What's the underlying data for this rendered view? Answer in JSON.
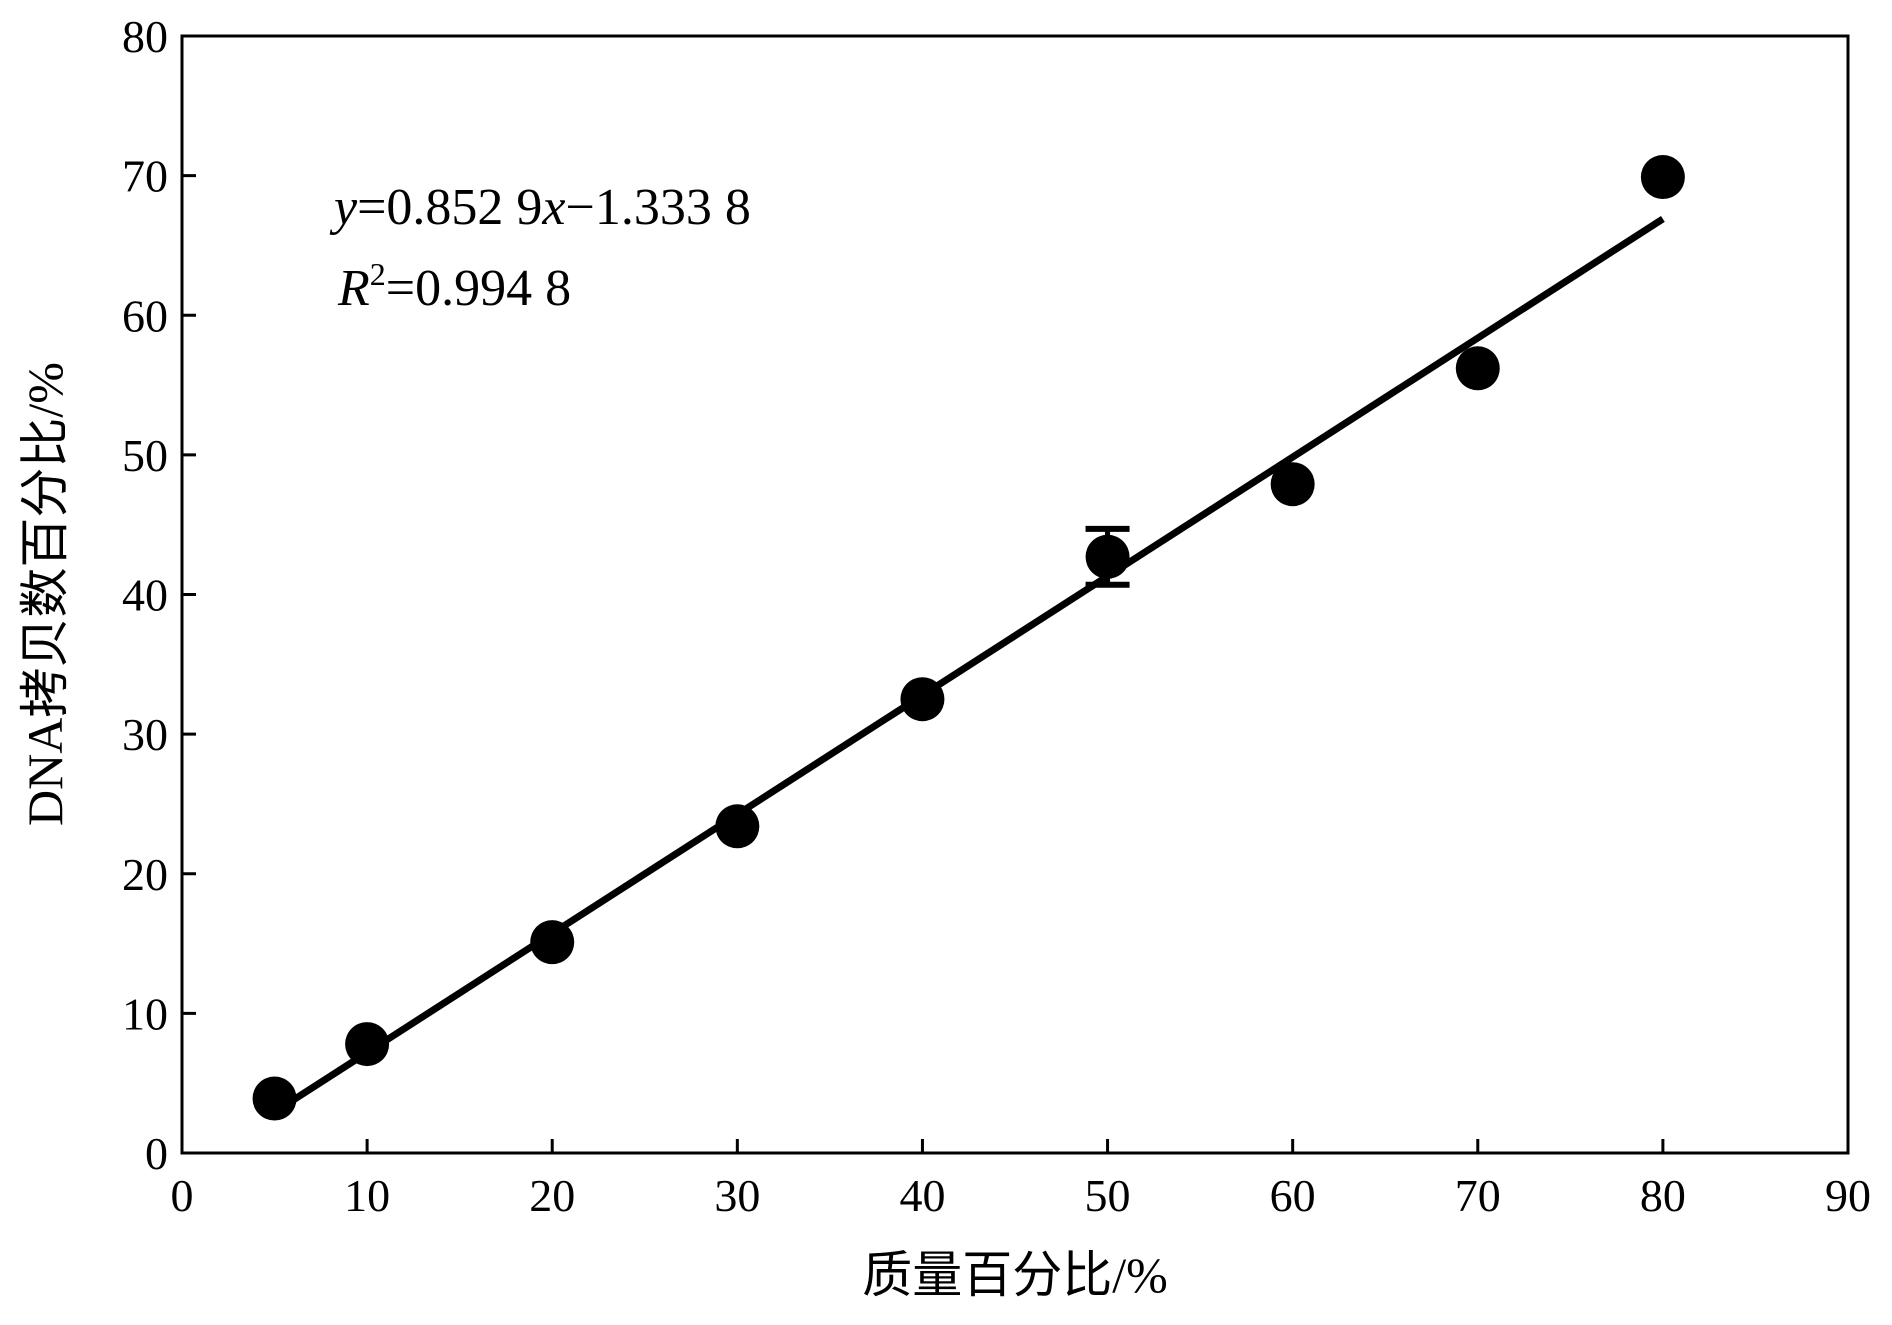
{
  "chart_data": {
    "type": "scatter",
    "title": "",
    "xlabel": "质量百分比/%",
    "ylabel": "DNA拷贝数百分比/%",
    "xlim": [
      0,
      90
    ],
    "ylim": [
      0,
      80
    ],
    "xticks": [
      0,
      10,
      20,
      30,
      40,
      50,
      60,
      70,
      80,
      90
    ],
    "yticks": [
      0,
      10,
      20,
      30,
      40,
      50,
      60,
      70,
      80
    ],
    "grid": false,
    "legend": "none",
    "series": [
      {
        "x": [
          5,
          10,
          20,
          30,
          40,
          50,
          60,
          70,
          80
        ],
        "y": [
          3.9,
          7.8,
          15.1,
          23.4,
          32.5,
          42.7,
          47.9,
          56.2,
          69.9
        ],
        "error": [
          0,
          0,
          0,
          0,
          0,
          2.0,
          0,
          0,
          0
        ]
      }
    ],
    "fit": {
      "slope": 0.8529,
      "intercept": -1.3338,
      "x_range": [
        5,
        80
      ],
      "equation": {
        "y_var": "y",
        "eq_text_1": "=0.852 9",
        "x_var": "x",
        "eq_text_2": "−1.333 8"
      },
      "r2": {
        "var": "R",
        "sup": "2",
        "value_text": "=0.994 8"
      }
    },
    "colors": {
      "marker": "#000000",
      "line": "#000000",
      "axis": "#000000"
    }
  }
}
